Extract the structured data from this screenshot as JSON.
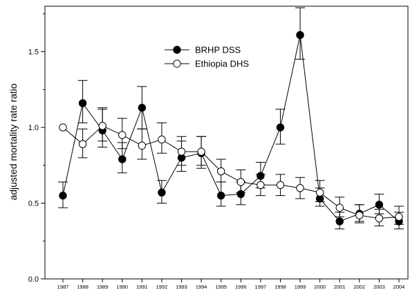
{
  "chart_data": {
    "type": "line",
    "ylabel": "adjusted mortality rate ratio",
    "xlabel": "",
    "title": "",
    "ylim": [
      0.0,
      1.8
    ],
    "yticks": [
      "0.0",
      "0.5",
      "1.0",
      "1.5"
    ],
    "x": [
      "1987",
      "1988",
      "1989",
      "1990",
      "1991",
      "1992",
      "1993",
      "1994",
      "1995",
      "1996",
      "1997",
      "1998",
      "1999",
      "2000",
      "2001",
      "2002",
      "2003",
      "2004"
    ],
    "legend_position": "top-center",
    "grid": false,
    "series": [
      {
        "name": "BRHP DSS",
        "marker": "filled-circle",
        "values": [
          0.55,
          1.16,
          0.98,
          0.79,
          1.13,
          0.57,
          0.8,
          0.83,
          0.55,
          0.56,
          0.68,
          1.0,
          1.61,
          0.53,
          0.38,
          0.43,
          0.49,
          0.38
        ],
        "lower": [
          0.47,
          1.03,
          0.87,
          0.7,
          0.99,
          0.5,
          0.71,
          0.73,
          0.48,
          0.49,
          0.6,
          0.89,
          1.45,
          0.48,
          0.33,
          0.38,
          0.43,
          0.33
        ],
        "upper": [
          0.64,
          1.31,
          1.12,
          0.9,
          1.27,
          0.65,
          0.91,
          0.94,
          0.64,
          0.64,
          0.77,
          1.12,
          1.79,
          0.6,
          0.44,
          0.49,
          0.56,
          0.44
        ]
      },
      {
        "name": "Ethiopia DHS",
        "marker": "open-circle",
        "values": [
          1.0,
          0.89,
          1.01,
          0.95,
          0.88,
          0.92,
          0.84,
          0.84,
          0.71,
          0.64,
          0.62,
          0.62,
          0.6,
          0.57,
          0.47,
          0.42,
          0.4,
          0.41
        ],
        "lower": [
          1.0,
          0.8,
          0.91,
          0.86,
          0.79,
          0.83,
          0.75,
          0.75,
          0.64,
          0.57,
          0.55,
          0.55,
          0.53,
          0.51,
          0.41,
          0.37,
          0.35,
          0.36
        ],
        "upper": [
          1.0,
          0.99,
          1.13,
          1.06,
          0.99,
          1.03,
          0.94,
          0.94,
          0.79,
          0.72,
          0.69,
          0.69,
          0.67,
          0.65,
          0.54,
          0.49,
          0.46,
          0.48
        ]
      }
    ]
  }
}
